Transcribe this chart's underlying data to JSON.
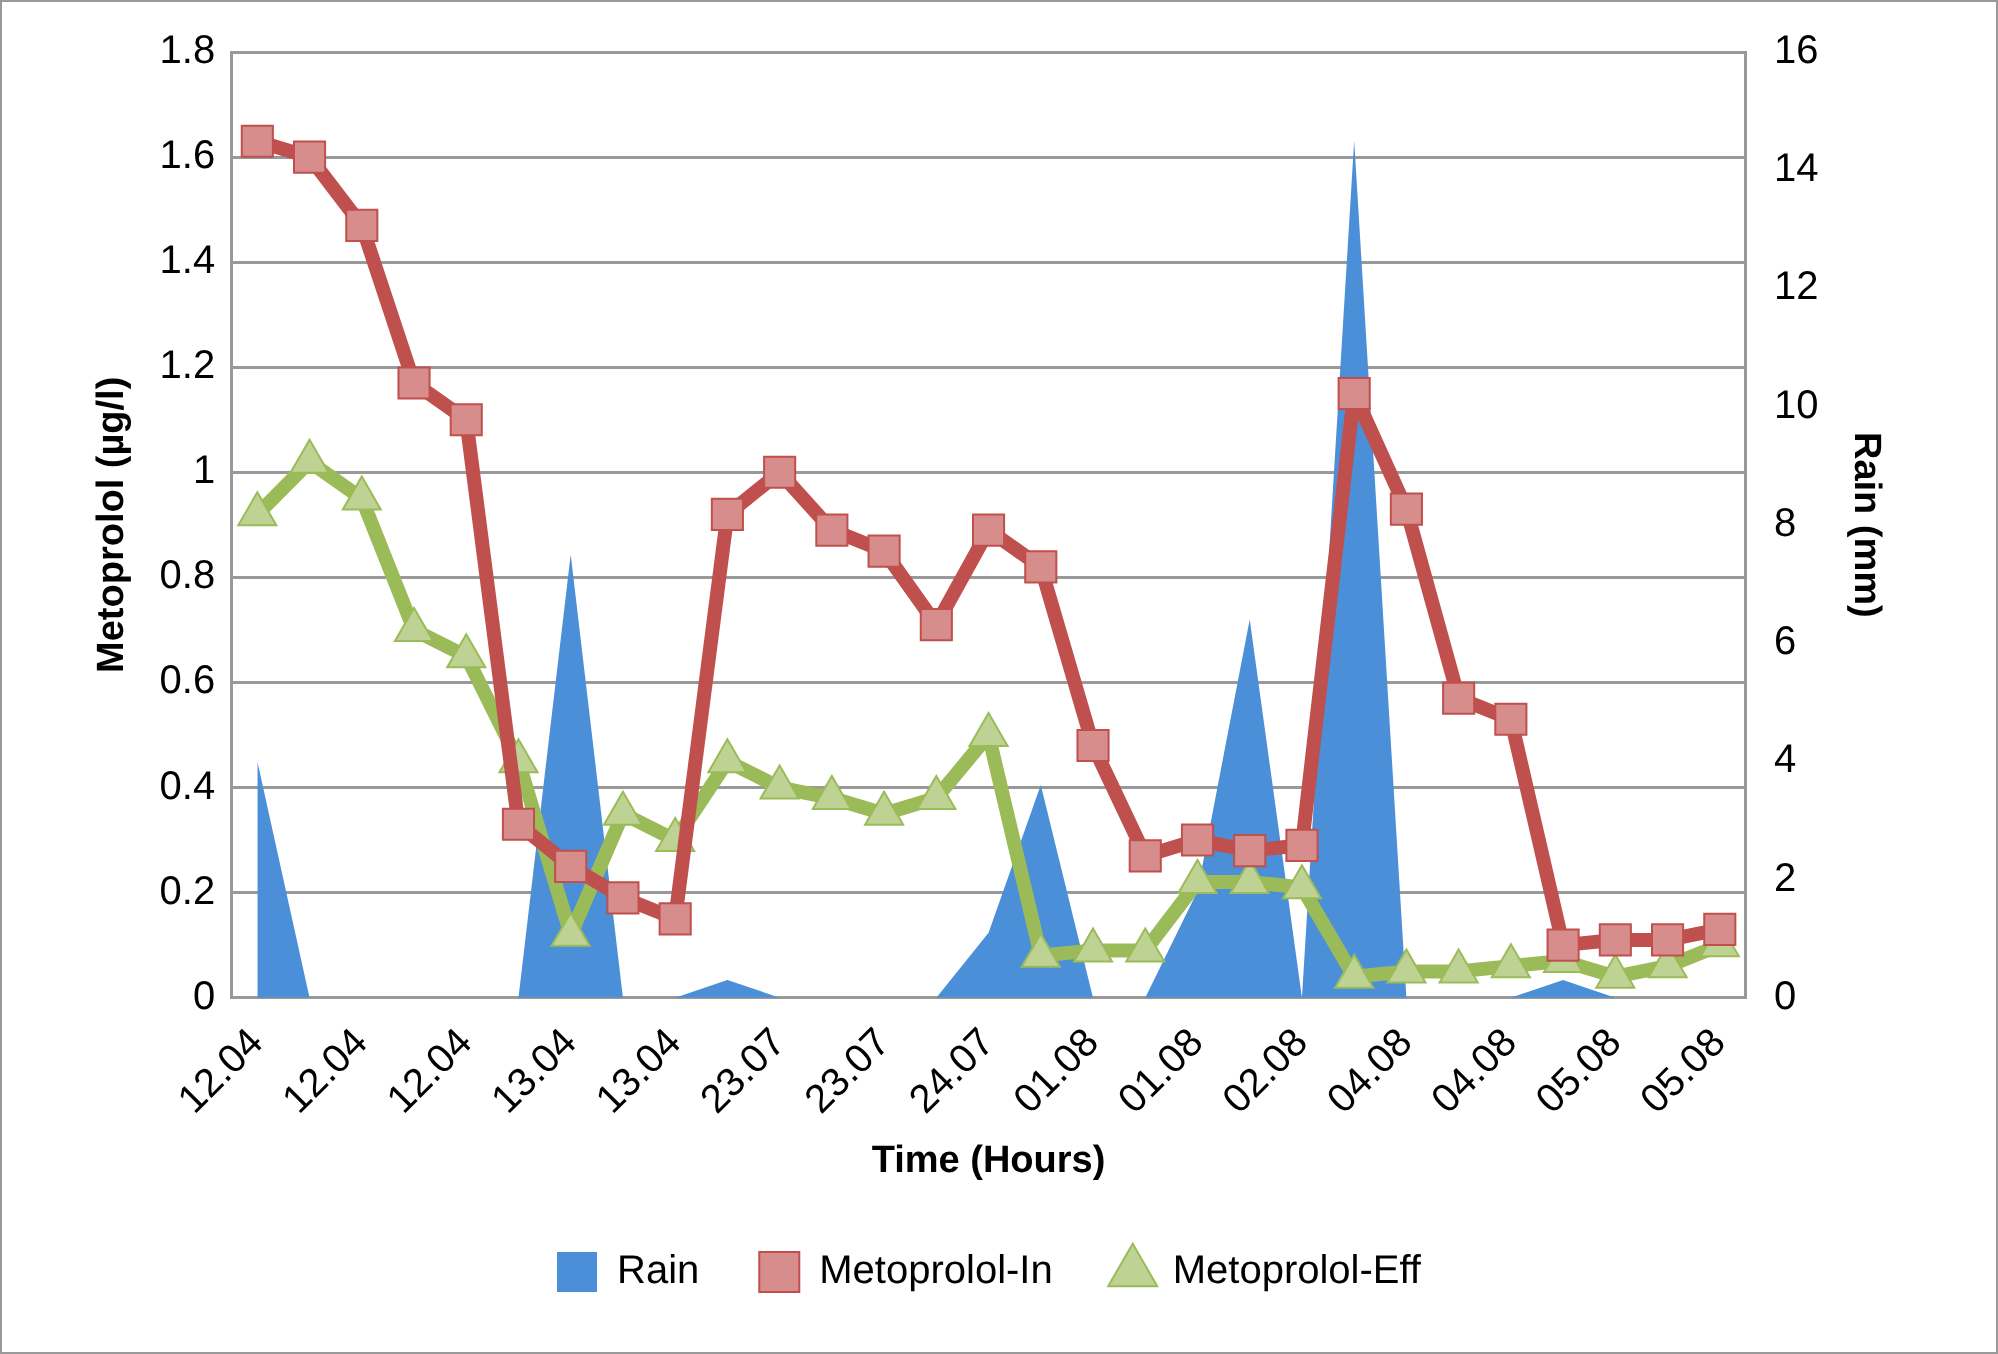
{
  "chart_data": {
    "type": "line",
    "xlabel": "Time (Hours)",
    "ylabel": "Metoprolol (µg/l)",
    "y2label": "Rain (mm)",
    "categories": [
      "12.04",
      null,
      "12.04",
      null,
      "12.04",
      null,
      "13.04",
      null,
      "13.04",
      null,
      "23.07",
      null,
      "23.07",
      null,
      "24.07",
      null,
      "01.08",
      null,
      "01.08",
      null,
      "02.08",
      null,
      "04.08",
      null,
      "04.08",
      null,
      "05.08",
      null,
      "05.08"
    ],
    "series": [
      {
        "name": "Rain",
        "type": "area",
        "axis": "y2",
        "color": "#4a8fd8",
        "values": [
          4.0,
          0,
          0,
          0,
          0,
          0,
          7.5,
          0,
          0,
          0.3,
          0,
          0,
          0,
          0,
          1.1,
          3.6,
          0,
          0,
          1.8,
          6.4,
          0,
          14.5,
          0,
          0,
          0,
          0.3,
          0,
          0,
          0
        ]
      },
      {
        "name": "Metoprolol-In",
        "color": "#c0504d",
        "marker": "square",
        "values": [
          1.63,
          1.6,
          1.47,
          1.17,
          1.1,
          0.33,
          0.25,
          0.19,
          0.15,
          0.92,
          1.0,
          0.89,
          0.85,
          0.71,
          0.89,
          0.82,
          0.48,
          0.27,
          0.3,
          0.28,
          0.29,
          1.15,
          0.93,
          0.57,
          0.53,
          0.1,
          0.11,
          0.11,
          0.13
        ]
      },
      {
        "name": "Metoprolol-Eff",
        "color": "#9bbb59",
        "marker": "triangle",
        "values": [
          0.92,
          1.02,
          0.95,
          0.7,
          0.65,
          0.45,
          0.12,
          0.35,
          0.3,
          0.45,
          0.4,
          0.38,
          0.35,
          0.38,
          0.5,
          0.08,
          0.09,
          0.09,
          0.22,
          0.22,
          0.21,
          0.04,
          0.05,
          0.05,
          0.06,
          0.07,
          0.04,
          0.06,
          0.1
        ]
      }
    ],
    "ylim": [
      0,
      1.8
    ],
    "yticks": [
      0,
      0.2,
      0.4,
      0.6,
      0.8,
      1,
      1.2,
      1.4,
      1.6,
      1.8
    ],
    "y2lim": [
      0,
      16
    ],
    "y2ticks": [
      0,
      2,
      4,
      6,
      8,
      10,
      12,
      14,
      16
    ],
    "grid": "y",
    "legend": "bottom"
  }
}
